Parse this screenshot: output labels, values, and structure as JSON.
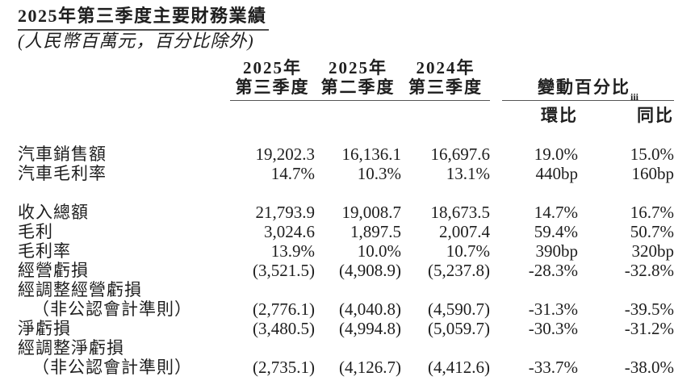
{
  "title": "2025年第三季度主要財務業績",
  "subtitle": "(人民幣百萬元，百分比除外)",
  "table": {
    "quarter_headers": [
      {
        "line1": "2025年",
        "line2": "第三季度"
      },
      {
        "line1": "2025年",
        "line2": "第二季度"
      },
      {
        "line1": "2024年",
        "line2": "第三季度"
      }
    ],
    "change_group": {
      "label": "變動百分比",
      "footnote": "iii",
      "qoq": "環比",
      "yoy": "同比"
    },
    "rows": [
      {
        "type": "data",
        "label": "汽車銷售額",
        "indent": false,
        "values": [
          "19,202.3",
          "16,136.1",
          "16,697.6",
          "19.0%",
          "15.0%"
        ]
      },
      {
        "type": "data",
        "label": "汽車毛利率",
        "indent": false,
        "values": [
          "14.7%",
          "10.3%",
          "13.1%",
          "440bp",
          "160bp"
        ]
      },
      {
        "type": "spacer"
      },
      {
        "type": "data",
        "label": "收入總額",
        "indent": false,
        "values": [
          "21,793.9",
          "19,008.7",
          "18,673.5",
          "14.7%",
          "16.7%"
        ]
      },
      {
        "type": "data",
        "label": "毛利",
        "indent": false,
        "values": [
          "3,024.6",
          "1,897.5",
          "2,007.4",
          "59.4%",
          "50.7%"
        ]
      },
      {
        "type": "data",
        "label": "毛利率",
        "indent": false,
        "values": [
          "13.9%",
          "10.0%",
          "10.7%",
          "390bp",
          "320bp"
        ]
      },
      {
        "type": "data",
        "label": "經營虧損",
        "indent": false,
        "values": [
          "(3,521.5)",
          "(4,908.9)",
          "(5,237.8)",
          "-28.3%",
          "-32.8%"
        ]
      },
      {
        "type": "data",
        "label": "經調整經營虧損",
        "indent": false,
        "values": [
          "",
          "",
          "",
          "",
          ""
        ]
      },
      {
        "type": "data",
        "label": "（非公認會計準則）",
        "indent": true,
        "values": [
          "(2,776.1)",
          "(4,040.8)",
          "(4,590.7)",
          "-31.3%",
          "-39.5%"
        ]
      },
      {
        "type": "data",
        "label": "淨虧損",
        "indent": false,
        "values": [
          "(3,480.5)",
          "(4,994.8)",
          "(5,059.7)",
          "-30.3%",
          "-31.2%"
        ]
      },
      {
        "type": "data",
        "label": "經調整淨虧損",
        "indent": false,
        "values": [
          "",
          "",
          "",
          "",
          ""
        ]
      },
      {
        "type": "data",
        "label": "（非公認會計準則）",
        "indent": true,
        "values": [
          "(2,735.1)",
          "(4,126.7)",
          "(4,412.6)",
          "-33.7%",
          "-38.0%"
        ]
      }
    ]
  }
}
